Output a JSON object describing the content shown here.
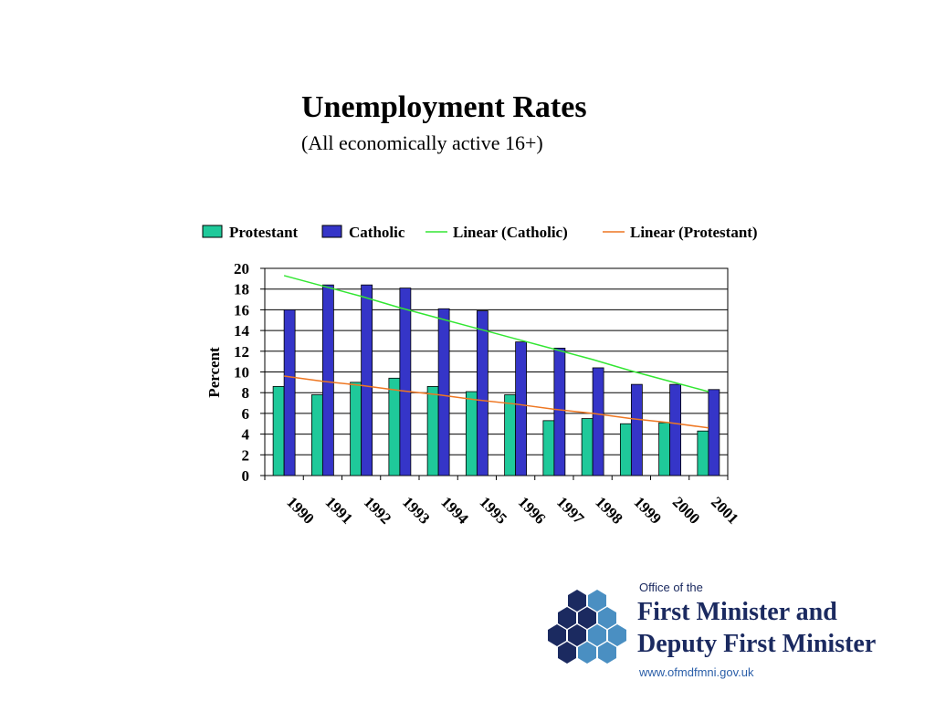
{
  "chart_data": {
    "type": "bar",
    "title": "Unemployment Rates",
    "subtitle": "(All economically active 16+)",
    "y_label": "Percent",
    "categories": [
      "1990",
      "1991",
      "1992",
      "1993",
      "1994",
      "1995",
      "1996",
      "1997",
      "1998",
      "1999",
      "2000",
      "2001"
    ],
    "series": [
      {
        "name": "Protestant",
        "type": "bar",
        "color": "#1fc99a",
        "values": [
          8.6,
          7.8,
          9.0,
          9.4,
          8.6,
          8.1,
          7.8,
          5.3,
          5.5,
          5.0,
          5.1,
          4.3
        ]
      },
      {
        "name": "Catholic",
        "type": "bar",
        "color": "#3535c8",
        "values": [
          16.0,
          18.4,
          18.4,
          18.1,
          16.1,
          15.9,
          12.9,
          12.3,
          10.4,
          8.8,
          8.8,
          8.3
        ]
      },
      {
        "name": "Linear (Catholic)",
        "type": "line",
        "color": "#33e633",
        "values": [
          19.3,
          18.3,
          17.3,
          16.2,
          15.2,
          14.2,
          13.2,
          12.2,
          11.2,
          10.1,
          9.1,
          8.1
        ]
      },
      {
        "name": "Linear (Protestant)",
        "type": "line",
        "color": "#ee7722",
        "values": [
          9.6,
          9.1,
          8.7,
          8.2,
          7.8,
          7.3,
          6.9,
          6.4,
          6.0,
          5.5,
          5.1,
          4.6
        ]
      }
    ],
    "ylim": [
      0,
      20
    ],
    "yticks": [
      0,
      2,
      4,
      6,
      8,
      10,
      12,
      14,
      16,
      18,
      20
    ],
    "grid": true,
    "legend": "top"
  },
  "logo": {
    "line1": "Office of the",
    "line2": "First Minister and",
    "line3": "Deputy First Minister",
    "url": "www.ofmdfmni.gov.uk"
  }
}
